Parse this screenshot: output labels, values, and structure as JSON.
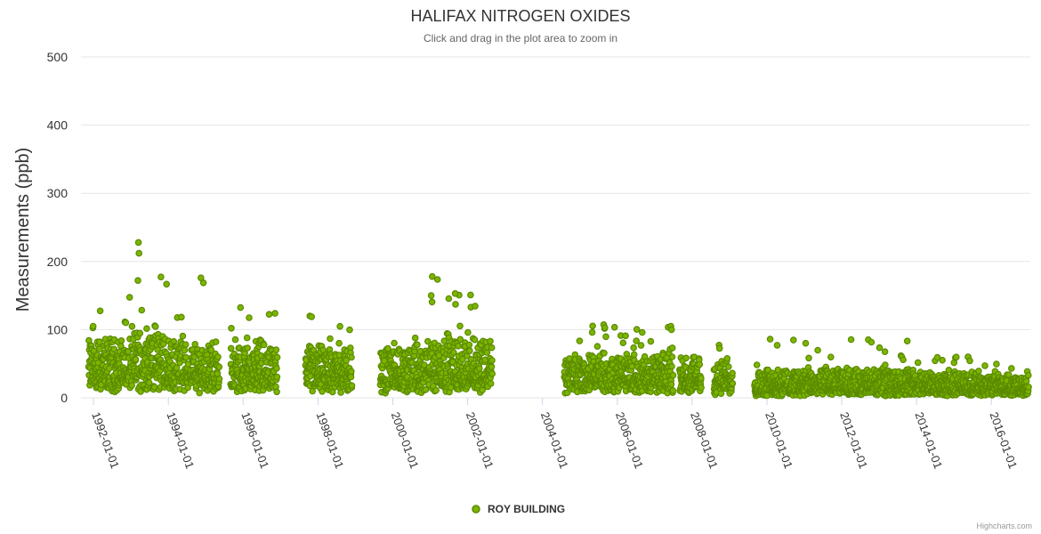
{
  "chart_data": {
    "type": "scatter",
    "title": "HALIFAX NITROGEN OXIDES",
    "subtitle": "Click and drag in the plot area to zoom in",
    "ylabel": "Measurements (ppb)",
    "xlabel": "",
    "ylim": [
      0,
      500
    ],
    "yticks": [
      0,
      100,
      200,
      300,
      400,
      500
    ],
    "xlim": [
      "1991-09-01",
      "2017-01-15"
    ],
    "xticks": [
      "1992-01-01",
      "1994-01-01",
      "1996-01-01",
      "1998-01-01",
      "2000-01-01",
      "2002-01-01",
      "2004-01-01",
      "2006-01-01",
      "2008-01-01",
      "2010-01-01",
      "2012-01-01",
      "2014-01-01",
      "2016-01-01"
    ],
    "grid": true,
    "legend_position": "bottom-center",
    "series": [
      {
        "name": "ROY BUILDING",
        "color": "#7cb500",
        "marker_border": "#5a8a00",
        "segments": [
          {
            "start": "1991-11-15",
            "end": "1992-12-31",
            "base": 25,
            "spread": 60,
            "max": 155
          },
          {
            "start": "1993-01-01",
            "end": "1993-12-31",
            "base": 30,
            "spread": 70,
            "max": 228
          },
          {
            "start": "1994-01-01",
            "end": "1994-07-15",
            "base": 25,
            "spread": 55,
            "max": 140
          },
          {
            "start": "1994-08-01",
            "end": "1995-05-15",
            "base": 22,
            "spread": 60,
            "max": 176
          },
          {
            "start": "1995-09-01",
            "end": "1996-11-30",
            "base": 20,
            "spread": 60,
            "max": 140
          },
          {
            "start": "1997-09-01",
            "end": "1998-11-30",
            "base": 20,
            "spread": 55,
            "max": 126
          },
          {
            "start": "1999-09-01",
            "end": "2000-12-31",
            "base": 20,
            "spread": 55,
            "max": 100
          },
          {
            "start": "2001-01-01",
            "end": "2002-08-31",
            "base": 25,
            "spread": 65,
            "max": 178
          },
          {
            "start": "2004-08-01",
            "end": "2007-06-30",
            "base": 18,
            "spread": 45,
            "max": 108
          },
          {
            "start": "2007-09-01",
            "end": "2008-03-31",
            "base": 18,
            "spread": 35,
            "max": 60
          },
          {
            "start": "2008-08-01",
            "end": "2009-01-31",
            "base": 15,
            "spread": 40,
            "max": 80
          },
          {
            "start": "2009-09-01",
            "end": "2013-12-31",
            "base": 8,
            "spread": 35,
            "max": 86
          },
          {
            "start": "2014-01-01",
            "end": "2016-12-31",
            "base": 8,
            "spread": 30,
            "max": 62
          }
        ],
        "notable_points": [
          {
            "x": "1993-03-15",
            "y": 228
          },
          {
            "x": "1993-03-20",
            "y": 212
          },
          {
            "x": "1993-03-10",
            "y": 172
          },
          {
            "x": "1994-11-15",
            "y": 176
          },
          {
            "x": "2001-01-20",
            "y": 178
          },
          {
            "x": "2001-01-10",
            "y": 150
          },
          {
            "x": "2001-09-01",
            "y": 153
          },
          {
            "x": "2005-09-01",
            "y": 103
          },
          {
            "x": "2006-09-01",
            "y": 96
          },
          {
            "x": "2010-02-01",
            "y": 86
          }
        ]
      }
    ]
  },
  "legend": {
    "label": "ROY BUILDING"
  },
  "credit": "Highcharts.com"
}
